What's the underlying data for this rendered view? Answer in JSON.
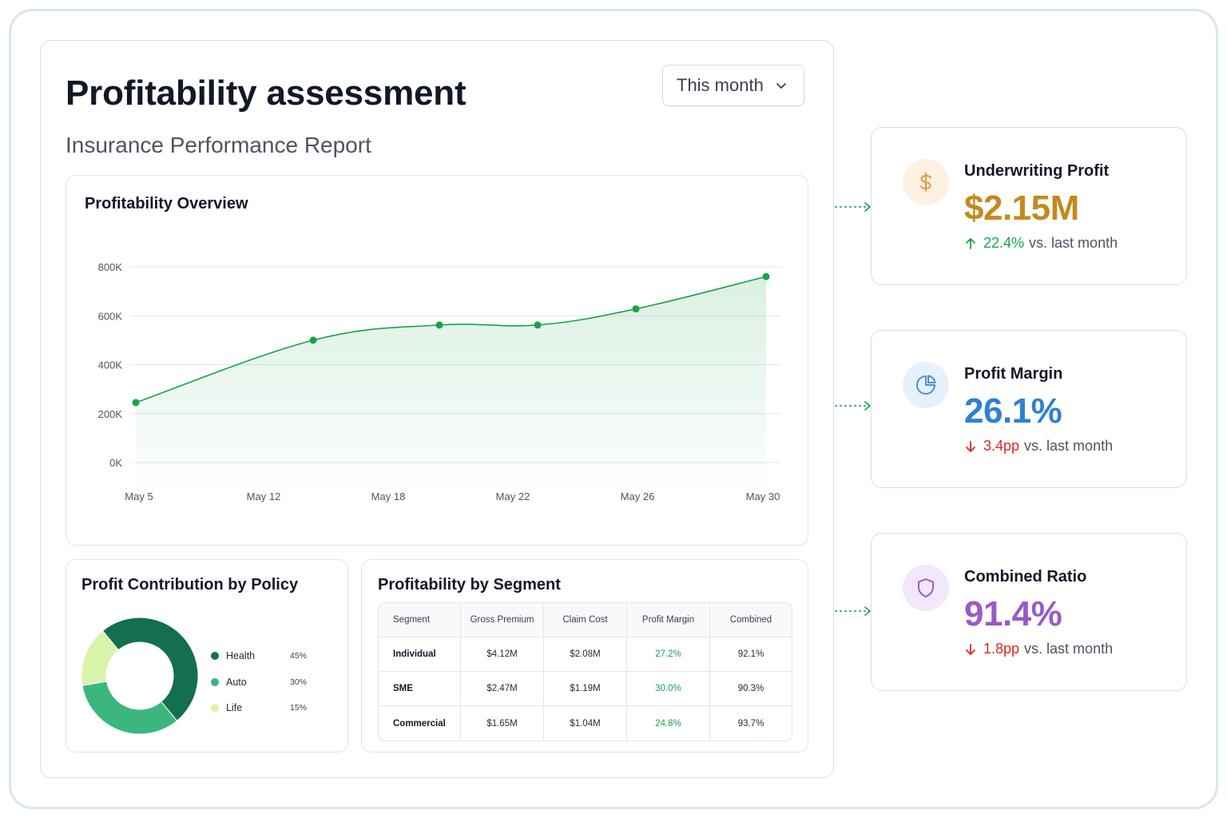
{
  "header": {
    "title": "Profitability assessment",
    "subtitle": "Insurance Performance Report",
    "period_select": {
      "value": "This month",
      "icon": "chevron-down-icon"
    }
  },
  "overview": {
    "title": "Profitability Overview"
  },
  "chart_data": {
    "type": "area",
    "title": "Profitability Overview",
    "x": [
      "May 5",
      "May 12",
      "May 18",
      "May 22",
      "May 26",
      "May 30"
    ],
    "x_tick_labels": [
      "May 5",
      "May 12",
      "May 18",
      "May 22",
      "May 26",
      "May 30"
    ],
    "points": [
      {
        "x": "May 5",
        "y": 245000
      },
      {
        "x": "May 12",
        "y": 500000
      },
      {
        "x": "May 18",
        "y": 562000
      },
      {
        "x": "May 22",
        "y": 562000
      },
      {
        "x": "May 26",
        "y": 628000
      },
      {
        "x": "May 30",
        "y": 760000
      }
    ],
    "y_tick_labels": [
      "0K",
      "200K",
      "400K",
      "600K",
      "800K"
    ],
    "y_ticks": [
      0,
      200000,
      400000,
      600000,
      800000
    ],
    "ylim": [
      0,
      800000
    ],
    "grid": true,
    "color": "#16a34a"
  },
  "policy": {
    "title": "Profit Contribution by Policy",
    "items": [
      {
        "name": "Health",
        "pct_label": "45%",
        "value": 45,
        "color": "#136f4d"
      },
      {
        "name": "Auto",
        "pct_label": "30%",
        "value": 30,
        "color": "#3bb77e"
      },
      {
        "name": "Life",
        "pct_label": "15%",
        "value": 15,
        "color": "#d7f5a8"
      }
    ]
  },
  "segment": {
    "title": "Profitability by Segment",
    "columns": [
      "Segment",
      "Gross Premium",
      "Claim Cost",
      "Profit Margin",
      "Combined"
    ],
    "rows": [
      [
        "Individual",
        "$4.12M",
        "$2.08M",
        "27.2%",
        "92.1%"
      ],
      [
        "SME",
        "$2.47M",
        "$1.19M",
        "30.0%",
        "90.3%"
      ],
      [
        "Commercial",
        "$1.65M",
        "$1.04M",
        "24.8%",
        "93.7%"
      ]
    ]
  },
  "kpis": [
    {
      "label": "Underwriting Profit",
      "value": "$2.15M",
      "delta": "22.4%",
      "suffix": "vs. last month",
      "direction": "up",
      "icon": "dollar-icon",
      "value_color": "#c28a1e",
      "delta_color": "#16a34a",
      "icon_bg": "#fdf1e4",
      "icon_color": "#e39b3a"
    },
    {
      "label": "Profit Margin",
      "value": "26.1%",
      "delta": "3.4pp",
      "suffix": "vs. last month",
      "direction": "down",
      "icon": "pie-chart-icon",
      "value_color": "#2f80d1",
      "delta_color": "#dc2626",
      "icon_bg": "#e7f1fc",
      "icon_color": "#4a90d9"
    },
    {
      "label": "Combined Ratio",
      "value": "91.4%",
      "delta": "1.8pp",
      "suffix": "vs. last month",
      "direction": "down",
      "icon": "shield-icon",
      "value_color": "#9b59c6",
      "delta_color": "#dc2626",
      "icon_bg": "#f3e8fb",
      "icon_color": "#9b59c6"
    }
  ]
}
